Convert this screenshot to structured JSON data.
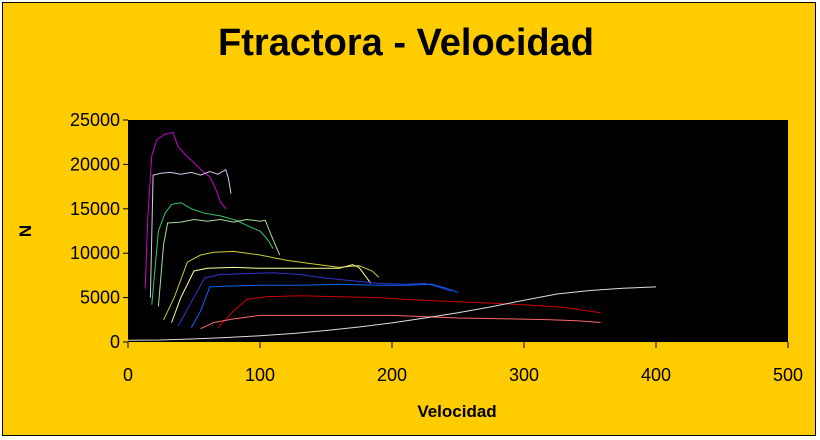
{
  "chart_data": {
    "type": "line",
    "title": "Ftractora - Velocidad",
    "xlabel": "Velocidad",
    "ylabel": "N",
    "xlim": [
      0,
      500
    ],
    "ylim": [
      0,
      25000
    ],
    "xticks": [
      "0",
      "100",
      "200",
      "300",
      "400",
      "500"
    ],
    "yticks": [
      "0",
      "5000",
      "10000",
      "15000",
      "20000",
      "25000"
    ],
    "grid": false,
    "legend": "none",
    "plot_background": "#000000",
    "chart_background": "#FFCC00",
    "series": [
      {
        "color": "#CC00CC",
        "values": [
          [
            13,
            6000
          ],
          [
            15,
            14000
          ],
          [
            18,
            21000
          ],
          [
            22,
            22800
          ],
          [
            28,
            23400
          ],
          [
            34,
            23600
          ],
          [
            38,
            22000
          ],
          [
            44,
            21000
          ],
          [
            50,
            20200
          ],
          [
            56,
            19300
          ],
          [
            62,
            18600
          ],
          [
            66,
            17400
          ],
          [
            70,
            15800
          ],
          [
            74,
            15000
          ]
        ]
      },
      {
        "color": "#D9C8F0",
        "values": [
          [
            17,
            5000
          ],
          [
            19,
            18800
          ],
          [
            25,
            19000
          ],
          [
            32,
            19100
          ],
          [
            40,
            18900
          ],
          [
            48,
            19100
          ],
          [
            55,
            18800
          ],
          [
            62,
            19200
          ],
          [
            68,
            18900
          ],
          [
            74,
            19400
          ],
          [
            76,
            18500
          ],
          [
            78,
            16700
          ]
        ]
      },
      {
        "color": "#33CC66",
        "values": [
          [
            18,
            4200
          ],
          [
            23,
            12500
          ],
          [
            28,
            14500
          ],
          [
            33,
            15500
          ],
          [
            40,
            15700
          ],
          [
            48,
            15000
          ],
          [
            58,
            14500
          ],
          [
            70,
            14200
          ],
          [
            82,
            13700
          ],
          [
            92,
            13000
          ],
          [
            100,
            12500
          ],
          [
            106,
            11500
          ],
          [
            110,
            10500
          ]
        ]
      },
      {
        "color": "#AADD99",
        "values": [
          [
            23,
            4000
          ],
          [
            27,
            11000
          ],
          [
            30,
            13400
          ],
          [
            40,
            13500
          ],
          [
            50,
            13800
          ],
          [
            60,
            13600
          ],
          [
            70,
            13800
          ],
          [
            80,
            13500
          ],
          [
            90,
            13800
          ],
          [
            100,
            13600
          ],
          [
            104,
            13700
          ],
          [
            108,
            12200
          ],
          [
            112,
            10800
          ],
          [
            115,
            9800
          ]
        ]
      },
      {
        "color": "#CCCC33",
        "values": [
          [
            27,
            2500
          ],
          [
            35,
            5000
          ],
          [
            45,
            9000
          ],
          [
            55,
            9800
          ],
          [
            65,
            10100
          ],
          [
            80,
            10200
          ],
          [
            100,
            9800
          ],
          [
            120,
            9200
          ],
          [
            140,
            8800
          ],
          [
            160,
            8400
          ],
          [
            175,
            8600
          ],
          [
            185,
            8000
          ],
          [
            190,
            7300
          ]
        ]
      },
      {
        "color": "#FFFF99",
        "values": [
          [
            33,
            2200
          ],
          [
            40,
            5000
          ],
          [
            50,
            8000
          ],
          [
            60,
            8300
          ],
          [
            80,
            8400
          ],
          [
            100,
            8300
          ],
          [
            120,
            8300
          ],
          [
            140,
            8300
          ],
          [
            160,
            8300
          ],
          [
            170,
            8700
          ],
          [
            175,
            8400
          ],
          [
            180,
            7400
          ],
          [
            184,
            6600
          ]
        ]
      },
      {
        "color": "#3333CC",
        "values": [
          [
            38,
            1800
          ],
          [
            48,
            4500
          ],
          [
            58,
            7200
          ],
          [
            70,
            7600
          ],
          [
            90,
            7700
          ],
          [
            110,
            7800
          ],
          [
            130,
            7600
          ],
          [
            150,
            7200
          ],
          [
            170,
            6900
          ],
          [
            190,
            6600
          ],
          [
            210,
            6500
          ],
          [
            225,
            6600
          ],
          [
            235,
            6200
          ],
          [
            245,
            5700
          ]
        ]
      },
      {
        "color": "#0066FF",
        "values": [
          [
            48,
            1600
          ],
          [
            55,
            3500
          ],
          [
            62,
            6200
          ],
          [
            75,
            6300
          ],
          [
            100,
            6400
          ],
          [
            130,
            6400
          ],
          [
            160,
            6500
          ],
          [
            190,
            6400
          ],
          [
            210,
            6400
          ],
          [
            230,
            6500
          ],
          [
            240,
            6100
          ],
          [
            250,
            5600
          ]
        ]
      },
      {
        "color": "#CC0000",
        "values": [
          [
            68,
            1600
          ],
          [
            80,
            3500
          ],
          [
            90,
            4800
          ],
          [
            105,
            5100
          ],
          [
            130,
            5200
          ],
          [
            160,
            5100
          ],
          [
            190,
            5000
          ],
          [
            210,
            4800
          ],
          [
            240,
            4600
          ],
          [
            270,
            4400
          ],
          [
            300,
            4200
          ],
          [
            330,
            3900
          ],
          [
            358,
            3300
          ]
        ]
      },
      {
        "color": "#FF6666",
        "values": [
          [
            55,
            1500
          ],
          [
            65,
            2200
          ],
          [
            80,
            2600
          ],
          [
            95,
            2900
          ],
          [
            100,
            3000
          ],
          [
            110,
            3000
          ],
          [
            150,
            3000
          ],
          [
            200,
            3000
          ],
          [
            250,
            2700
          ],
          [
            290,
            2600
          ],
          [
            320,
            2500
          ],
          [
            340,
            2400
          ],
          [
            358,
            2200
          ]
        ]
      },
      {
        "color": "#DDDDDD",
        "values": [
          [
            0,
            200
          ],
          [
            25,
            230
          ],
          [
            50,
            350
          ],
          [
            75,
            510
          ],
          [
            100,
            700
          ],
          [
            125,
            960
          ],
          [
            150,
            1290
          ],
          [
            175,
            1690
          ],
          [
            200,
            2150
          ],
          [
            225,
            2700
          ],
          [
            250,
            3300
          ],
          [
            275,
            3950
          ],
          [
            300,
            4700
          ],
          [
            325,
            5400
          ],
          [
            350,
            5800
          ],
          [
            375,
            6050
          ],
          [
            400,
            6200
          ]
        ]
      }
    ]
  }
}
